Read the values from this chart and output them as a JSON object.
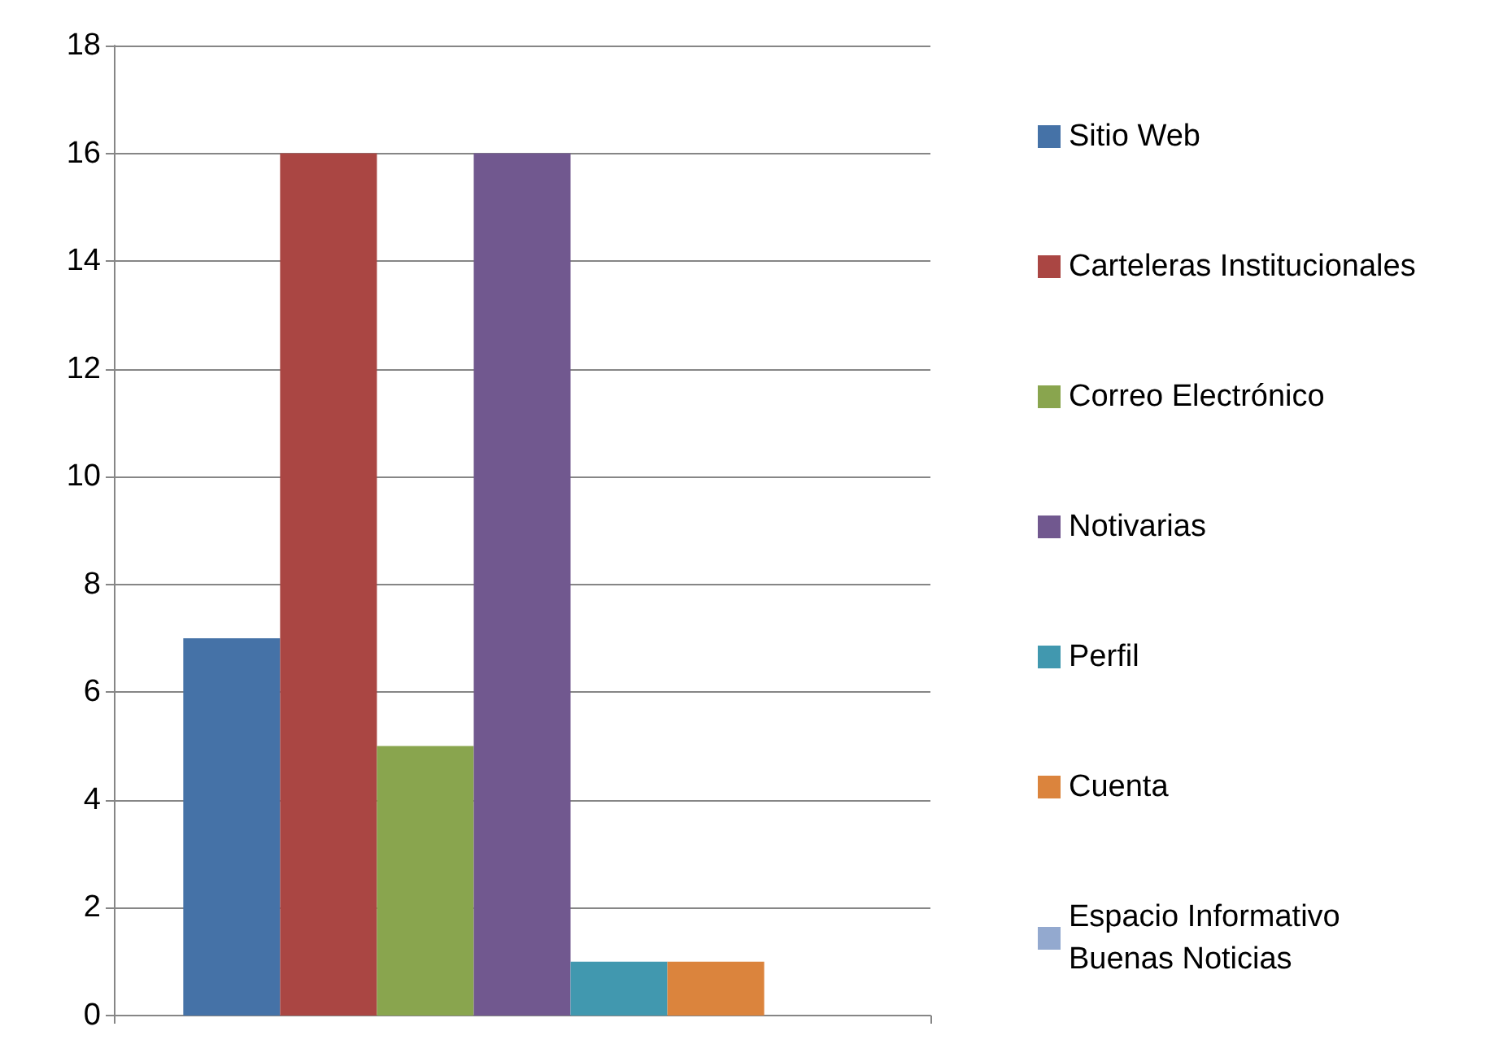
{
  "chart_data": {
    "type": "bar",
    "categories": [
      null
    ],
    "series": [
      {
        "name": "Sitio Web",
        "color": "#4572a7",
        "values": [
          7
        ]
      },
      {
        "name": "Carteleras Institucionales",
        "color": "#aa4643",
        "values": [
          16
        ]
      },
      {
        "name": "Correo Electrónico",
        "color": "#89a54e",
        "values": [
          5
        ]
      },
      {
        "name": "Notivarias",
        "color": "#71588f",
        "values": [
          16
        ]
      },
      {
        "name": "Perfil",
        "color": "#4198af",
        "values": [
          1
        ]
      },
      {
        "name": "Cuenta",
        "color": "#db843d",
        "values": [
          1
        ]
      },
      {
        "name": "Espacio Informativo Buenas Noticias",
        "color": "#93a9cf",
        "values": [
          0
        ]
      }
    ],
    "ylim": [
      0,
      18
    ],
    "yticks": [
      0,
      2,
      4,
      6,
      8,
      10,
      12,
      14,
      16,
      18
    ],
    "grid": "y",
    "legend": "right"
  }
}
